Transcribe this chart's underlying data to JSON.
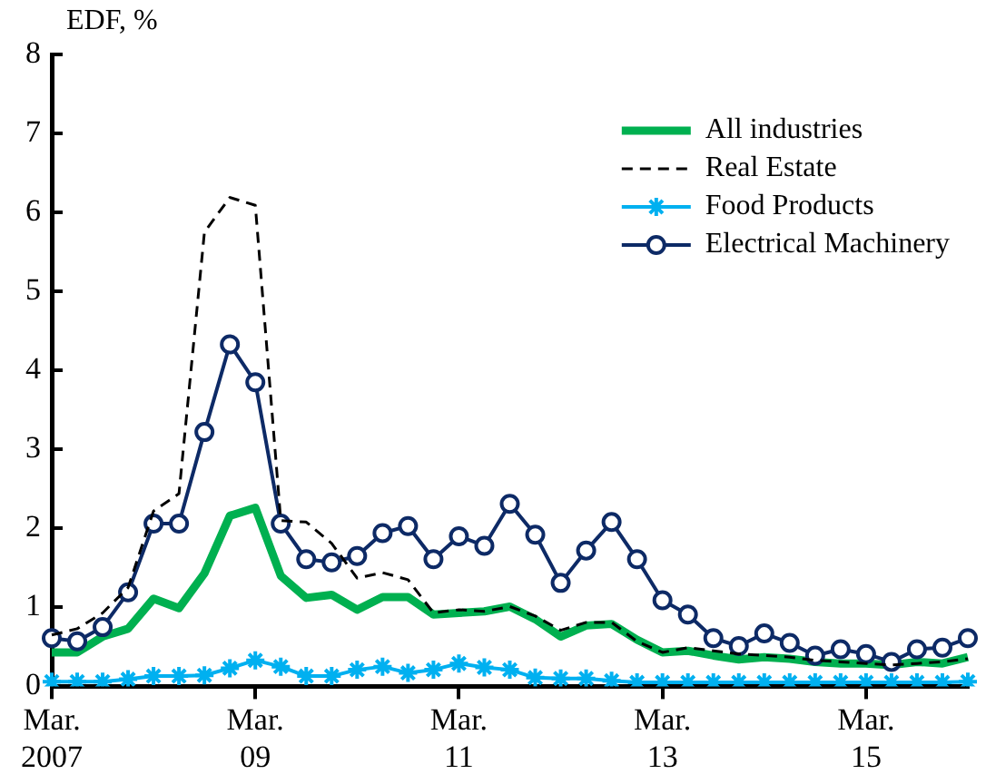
{
  "chart_data": {
    "type": "line",
    "ylabel": "EDF, %",
    "categories": [
      "Mar.\n2007",
      null,
      null,
      null,
      null,
      null,
      null,
      null,
      "Mar.\n09",
      null,
      null,
      null,
      null,
      null,
      null,
      null,
      "Mar.\n11",
      null,
      null,
      null,
      null,
      null,
      null,
      null,
      "Mar.\n13",
      null,
      null,
      null,
      null,
      null,
      null,
      null,
      "Mar.\n15",
      null,
      null,
      null,
      null
    ],
    "ylim": [
      0,
      8
    ],
    "yticks": [
      0,
      1,
      2,
      3,
      4,
      5,
      6,
      7,
      8
    ],
    "grid": false,
    "legend": "top right",
    "series": [
      {
        "name": "All industries",
        "color": "#00b050",
        "line_style": "solid",
        "marker": "none",
        "values": [
          0.43,
          0.43,
          0.63,
          0.73,
          1.11,
          0.99,
          1.43,
          2.16,
          2.26,
          1.4,
          1.12,
          1.16,
          0.97,
          1.13,
          1.13,
          0.91,
          0.93,
          0.95,
          1.01,
          0.85,
          0.63,
          0.77,
          0.79,
          0.59,
          0.43,
          0.45,
          0.39,
          0.34,
          0.37,
          0.35,
          0.31,
          0.29,
          0.29,
          0.27,
          0.31,
          0.29,
          0.37
        ]
      },
      {
        "name": "Real Estate",
        "color": "#000000",
        "line_style": "dashed",
        "marker": "none",
        "values": [
          0.65,
          0.73,
          0.93,
          1.25,
          2.22,
          2.44,
          5.75,
          6.19,
          6.09,
          2.1,
          2.08,
          1.81,
          1.37,
          1.44,
          1.35,
          0.93,
          0.97,
          0.95,
          1.01,
          0.89,
          0.71,
          0.81,
          0.81,
          0.57,
          0.43,
          0.49,
          0.45,
          0.41,
          0.39,
          0.37,
          0.33,
          0.31,
          0.29,
          0.27,
          0.29,
          0.31,
          0.35
        ]
      },
      {
        "name": "Food Products",
        "color": "#00b0f0",
        "line_style": "solid",
        "marker": "cross",
        "values": [
          0.06,
          0.06,
          0.06,
          0.09,
          0.13,
          0.13,
          0.14,
          0.23,
          0.33,
          0.25,
          0.13,
          0.13,
          0.21,
          0.25,
          0.17,
          0.21,
          0.29,
          0.24,
          0.21,
          0.11,
          0.1,
          0.1,
          0.07,
          0.05,
          0.05,
          0.05,
          0.05,
          0.05,
          0.05,
          0.05,
          0.05,
          0.05,
          0.05,
          0.05,
          0.05,
          0.05,
          0.06
        ]
      },
      {
        "name": "Electrical Machinery",
        "color": "#0d2a66",
        "line_style": "solid",
        "marker": "circle",
        "values": [
          0.61,
          0.57,
          0.75,
          1.19,
          2.06,
          2.06,
          3.22,
          4.33,
          3.85,
          2.06,
          1.61,
          1.57,
          1.65,
          1.94,
          2.03,
          1.61,
          1.9,
          1.78,
          2.31,
          1.92,
          1.31,
          1.72,
          2.08,
          1.61,
          1.09,
          0.91,
          0.61,
          0.51,
          0.67,
          0.55,
          0.39,
          0.47,
          0.41,
          0.31,
          0.47,
          0.49,
          0.61
        ]
      }
    ]
  }
}
